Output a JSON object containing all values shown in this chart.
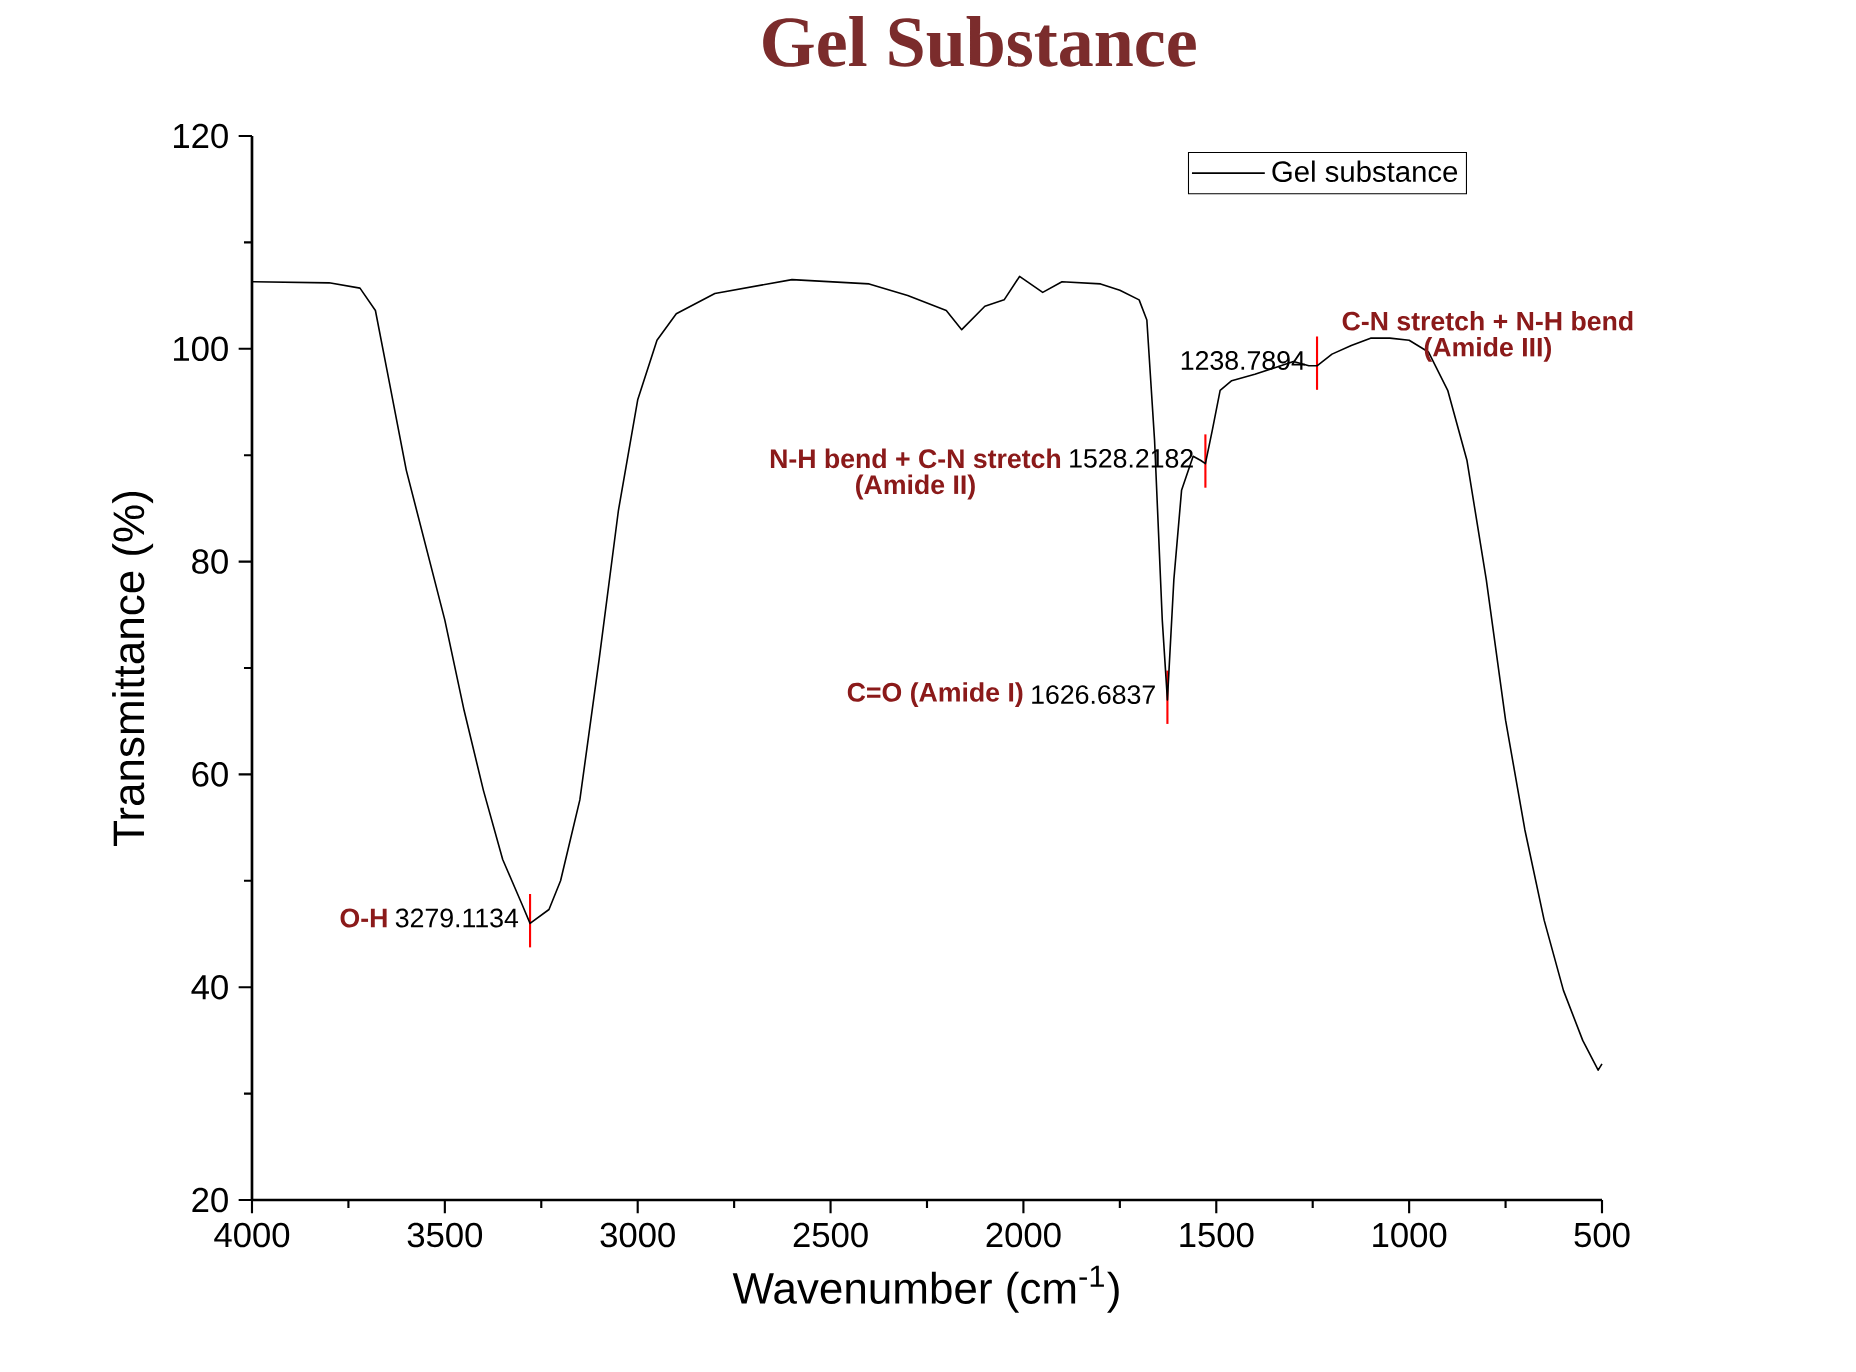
{
  "chart_data": {
    "type": "line",
    "title": "Gel Substance",
    "xlabel": "Wavenumber (cm$^{-1}$)",
    "ylabel": "Transmittance (%)",
    "xlim": [
      4000,
      500
    ],
    "ylim": [
      20,
      120
    ],
    "xticks": [
      4000,
      3500,
      3000,
      2500,
      2000,
      1500,
      1000,
      500
    ],
    "yticks": [
      20,
      40,
      60,
      80,
      100,
      120
    ],
    "legend": "top right",
    "grid": false,
    "x": [
      4000,
      3800,
      3720,
      3680,
      3650,
      3600,
      3500,
      3450,
      3400,
      3350,
      3300,
      3279.1134,
      3230,
      3200,
      3150,
      3100,
      3050,
      3000,
      2950,
      2900,
      2800,
      2600,
      2400,
      2300,
      2200,
      2160,
      2100,
      2050,
      2010,
      1950,
      1900,
      1800,
      1750,
      1700,
      1680,
      1660,
      1640,
      1626.6837,
      1610,
      1590,
      1560,
      1540,
      1528.2182,
      1510,
      1490,
      1460,
      1400,
      1350,
      1300,
      1260,
      1238.7894,
      1200,
      1150,
      1100,
      1050,
      1000,
      950,
      900,
      850,
      800,
      750,
      700,
      650,
      600,
      550,
      510,
      500
    ],
    "series": [
      {
        "name": "Gel substance",
        "color": "#000000",
        "values": [
          106.3,
          106.2,
          105.7,
          103.6,
          98,
          88.6,
          74.5,
          66,
          58.5,
          52,
          47.8,
          46,
          47.3,
          50,
          57.6,
          70.8,
          84.8,
          95.2,
          100.8,
          103.3,
          105.2,
          106.5,
          106.1,
          105,
          103.6,
          101.8,
          104,
          104.6,
          106.8,
          105.3,
          106.3,
          106.1,
          105.5,
          104.6,
          102.7,
          91.4,
          74.5,
          67,
          78.3,
          86.7,
          89.9,
          89.5,
          89.2,
          92.4,
          96.1,
          97,
          97.6,
          98.2,
          98.8,
          98.4,
          98.4,
          99.5,
          100.3,
          101,
          101,
          100.8,
          99.7,
          96.1,
          89.5,
          78.3,
          65.1,
          54.8,
          46.3,
          39.7,
          35,
          32.2,
          32.8
        ]
      }
    ],
    "annotations": [
      "O-H",
      {
        "text": "3279.1134",
        "x": 3279.1134,
        "y": 46
      },
      "C=O (Amide I)",
      {
        "text": "1626.6837",
        "x": 1626.6837,
        "y": 67
      },
      "N-H bend + C-N stretch",
      "(Amide II)",
      {
        "text": "1528.2182",
        "x": 1528.2182,
        "y": 89.2
      },
      "C-N stretch + N-H bend",
      "(Amide III)",
      {
        "text": "1238.7894",
        "x": 1238.7894,
        "y": 98.4
      }
    ]
  }
}
